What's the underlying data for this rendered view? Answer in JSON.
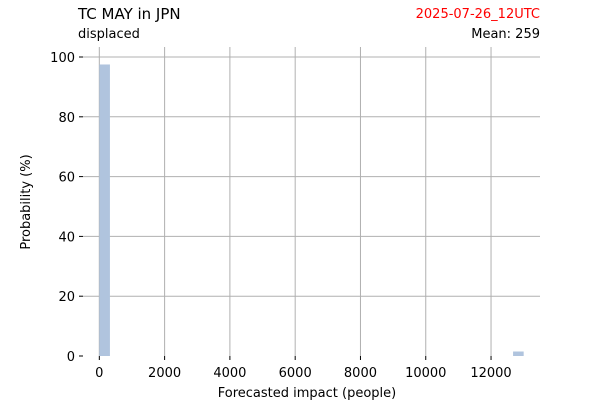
{
  "header": {
    "title": "TC MAY in JPN",
    "subtitle": "displaced",
    "date": "2025-07-26_12UTC",
    "mean_label": "Mean: 259"
  },
  "colors": {
    "bar": "#b0c4de",
    "grid": "#b0b0b0",
    "date_text": "#ff0000"
  },
  "chart_data": {
    "type": "bar",
    "title": "TC MAY in JPN",
    "xlabel": "Forecasted impact (people)",
    "ylabel": "Probability (%)",
    "xlim": [
      -500,
      13500
    ],
    "ylim": [
      0,
      100
    ],
    "xticks": [
      0,
      2000,
      4000,
      6000,
      8000,
      10000,
      12000
    ],
    "yticks": [
      0,
      20,
      40,
      60,
      80,
      100
    ],
    "bin_width": 325,
    "bins": [
      {
        "x0": 0,
        "x1": 325,
        "value": 97.5
      },
      {
        "x0": 12675,
        "x1": 13000,
        "value": 1.5
      }
    ],
    "grid": true
  }
}
